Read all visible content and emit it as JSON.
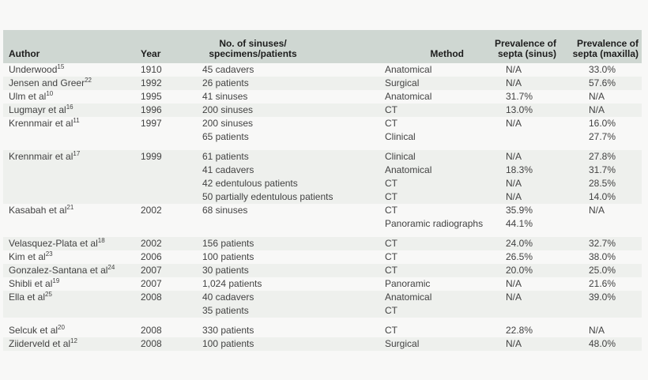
{
  "colors": {
    "header_bg": "#cfd7d2",
    "stripe_bg": "#eef0ed",
    "page_bg": "#f8f8f7",
    "text": "#424242",
    "header_text": "#1d1d1d"
  },
  "table": {
    "columns": [
      {
        "key": "author",
        "label": "Author"
      },
      {
        "key": "year",
        "label": "Year"
      },
      {
        "key": "count",
        "label_line1": "No. of sinuses/",
        "label_line2": "specimens/patients"
      },
      {
        "key": "method",
        "label": "Method"
      },
      {
        "key": "sinus",
        "label_line1": "Prevalence of",
        "label_line2": "septa (sinus)"
      },
      {
        "key": "maxilla",
        "label_line1": "Prevalence of",
        "label_line2": "septa (maxilla)"
      }
    ],
    "groups": [
      {
        "author": "Underwood",
        "ref": "15",
        "year": "1910",
        "shade": false,
        "gap_after": false,
        "rows": [
          {
            "count": "45 cadavers",
            "method": "Anatomical",
            "sinus": "N/A",
            "maxilla": "33.0%"
          }
        ]
      },
      {
        "author": "Jensen and Greer",
        "ref": "22",
        "year": "1992",
        "shade": true,
        "gap_after": false,
        "rows": [
          {
            "count": "26 patients",
            "method": "Surgical",
            "sinus": "N/A",
            "maxilla": "57.6%"
          }
        ]
      },
      {
        "author": "Ulm et al",
        "ref": "10",
        "year": "1995",
        "shade": false,
        "gap_after": false,
        "rows": [
          {
            "count": "41 sinuses",
            "method": "Anatomical",
            "sinus": "31.7%",
            "maxilla": "N/A"
          }
        ]
      },
      {
        "author": "Lugmayr et al",
        "ref": "16",
        "year": "1996",
        "shade": true,
        "gap_after": false,
        "rows": [
          {
            "count": "200 sinuses",
            "method": "CT",
            "sinus": "13.0%",
            "maxilla": "N/A"
          }
        ]
      },
      {
        "author": "Krennmair et al",
        "ref": "11",
        "year": "1997",
        "shade": false,
        "gap_after": true,
        "rows": [
          {
            "count": "200 sinuses",
            "method": "CT",
            "sinus": "N/A",
            "maxilla": "16.0%"
          },
          {
            "count": "65 patients",
            "method": "Clinical",
            "sinus": "",
            "maxilla": "27.7%"
          }
        ]
      },
      {
        "author": "Krennmair et al",
        "ref": "17",
        "year": "1999",
        "shade": true,
        "gap_after": false,
        "rows": [
          {
            "count": "61 patients",
            "method": "Clinical",
            "sinus": "N/A",
            "maxilla": "27.8%"
          },
          {
            "count": "41 cadavers",
            "method": "Anatomical",
            "sinus": "18.3%",
            "maxilla": "31.7%"
          },
          {
            "count": "42 edentulous patients",
            "method": "CT",
            "sinus": "N/A",
            "maxilla": "28.5%"
          },
          {
            "count": "50 partially edentulous patients",
            "method": "CT",
            "sinus": "N/A",
            "maxilla": "14.0%"
          }
        ]
      },
      {
        "author": "Kasabah et al",
        "ref": "21",
        "year": "2002",
        "shade": false,
        "gap_after": true,
        "rows": [
          {
            "count": "68 sinuses",
            "method": "CT",
            "sinus": "35.9%",
            "maxilla": "N/A"
          },
          {
            "count": "",
            "method": "Panoramic radiographs",
            "sinus": "44.1%",
            "maxilla": ""
          }
        ]
      },
      {
        "author": "Velasquez-Plata et al",
        "ref": "18",
        "year": "2002",
        "shade": true,
        "gap_after": false,
        "rows": [
          {
            "count": "156 patients",
            "method": "CT",
            "sinus": "24.0%",
            "maxilla": "32.7%"
          }
        ]
      },
      {
        "author": "Kim et al",
        "ref": "23",
        "year": "2006",
        "shade": false,
        "gap_after": false,
        "rows": [
          {
            "count": "100 patients",
            "method": "CT",
            "sinus": "26.5%",
            "maxilla": "38.0%"
          }
        ]
      },
      {
        "author": "Gonzalez-Santana et al",
        "ref": "24",
        "year": "2007",
        "shade": true,
        "gap_after": false,
        "rows": [
          {
            "count": "30 patients",
            "method": "CT",
            "sinus": "20.0%",
            "maxilla": "25.0%"
          }
        ]
      },
      {
        "author": "Shibli et al",
        "ref": "19",
        "year": "2007",
        "shade": false,
        "gap_after": false,
        "rows": [
          {
            "count": "1,024 patients",
            "method": "Panoramic",
            "sinus": "N/A",
            "maxilla": "21.6%"
          }
        ]
      },
      {
        "author": "Ella et al",
        "ref": "25",
        "year": "2008",
        "shade": true,
        "gap_after": true,
        "rows": [
          {
            "count": "40 cadavers",
            "method": "Anatomical",
            "sinus": "N/A",
            "maxilla": "39.0%"
          },
          {
            "count": "35 patients",
            "method": "CT",
            "sinus": "",
            "maxilla": ""
          }
        ]
      },
      {
        "author": "Selcuk et al",
        "ref": "20",
        "year": "2008",
        "shade": false,
        "gap_after": false,
        "rows": [
          {
            "count": "330 patients",
            "method": "CT",
            "sinus": "22.8%",
            "maxilla": "N/A"
          }
        ]
      },
      {
        "author": "Ziiderveld et al",
        "ref": "12",
        "year": "2008",
        "shade": true,
        "gap_after": false,
        "rows": [
          {
            "count": "100 patients",
            "method": "Surgical",
            "sinus": "N/A",
            "maxilla": "48.0%"
          }
        ]
      }
    ]
  }
}
